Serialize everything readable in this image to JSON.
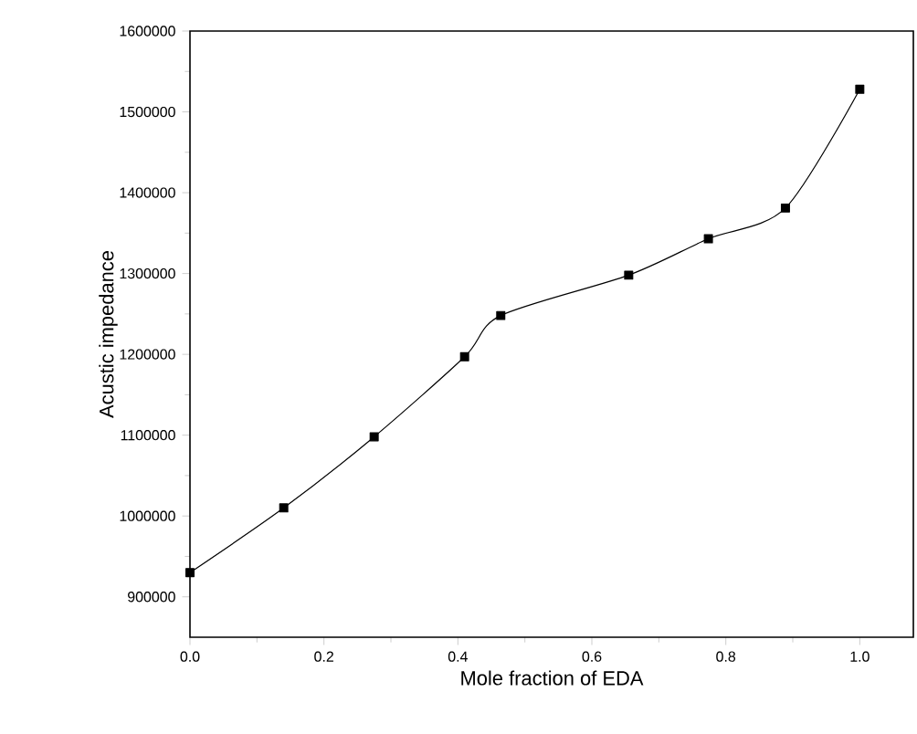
{
  "chart_data": {
    "type": "line",
    "xlabel": "Mole fraction of EDA",
    "ylabel": "Acustic impedance",
    "x": [
      0.0,
      0.14,
      0.275,
      0.41,
      0.464,
      0.655,
      0.774,
      0.889,
      1.0
    ],
    "values": [
      930000,
      1010000,
      1098000,
      1197000,
      1248000,
      1298000,
      1343000,
      1381000,
      1528000
    ],
    "color": "#000000",
    "marker": "square",
    "xlim": [
      0,
      1.08
    ],
    "ylim": [
      850000,
      1600000
    ],
    "xticks": [
      {
        "value": 0,
        "label": "0.0"
      },
      0.2,
      0.4,
      0.6,
      0.8,
      {
        "value": 1,
        "label": "1.0"
      }
    ],
    "yticks": [
      900000,
      1000000,
      1100000,
      1200000,
      1300000,
      1400000,
      1500000,
      1600000
    ]
  }
}
